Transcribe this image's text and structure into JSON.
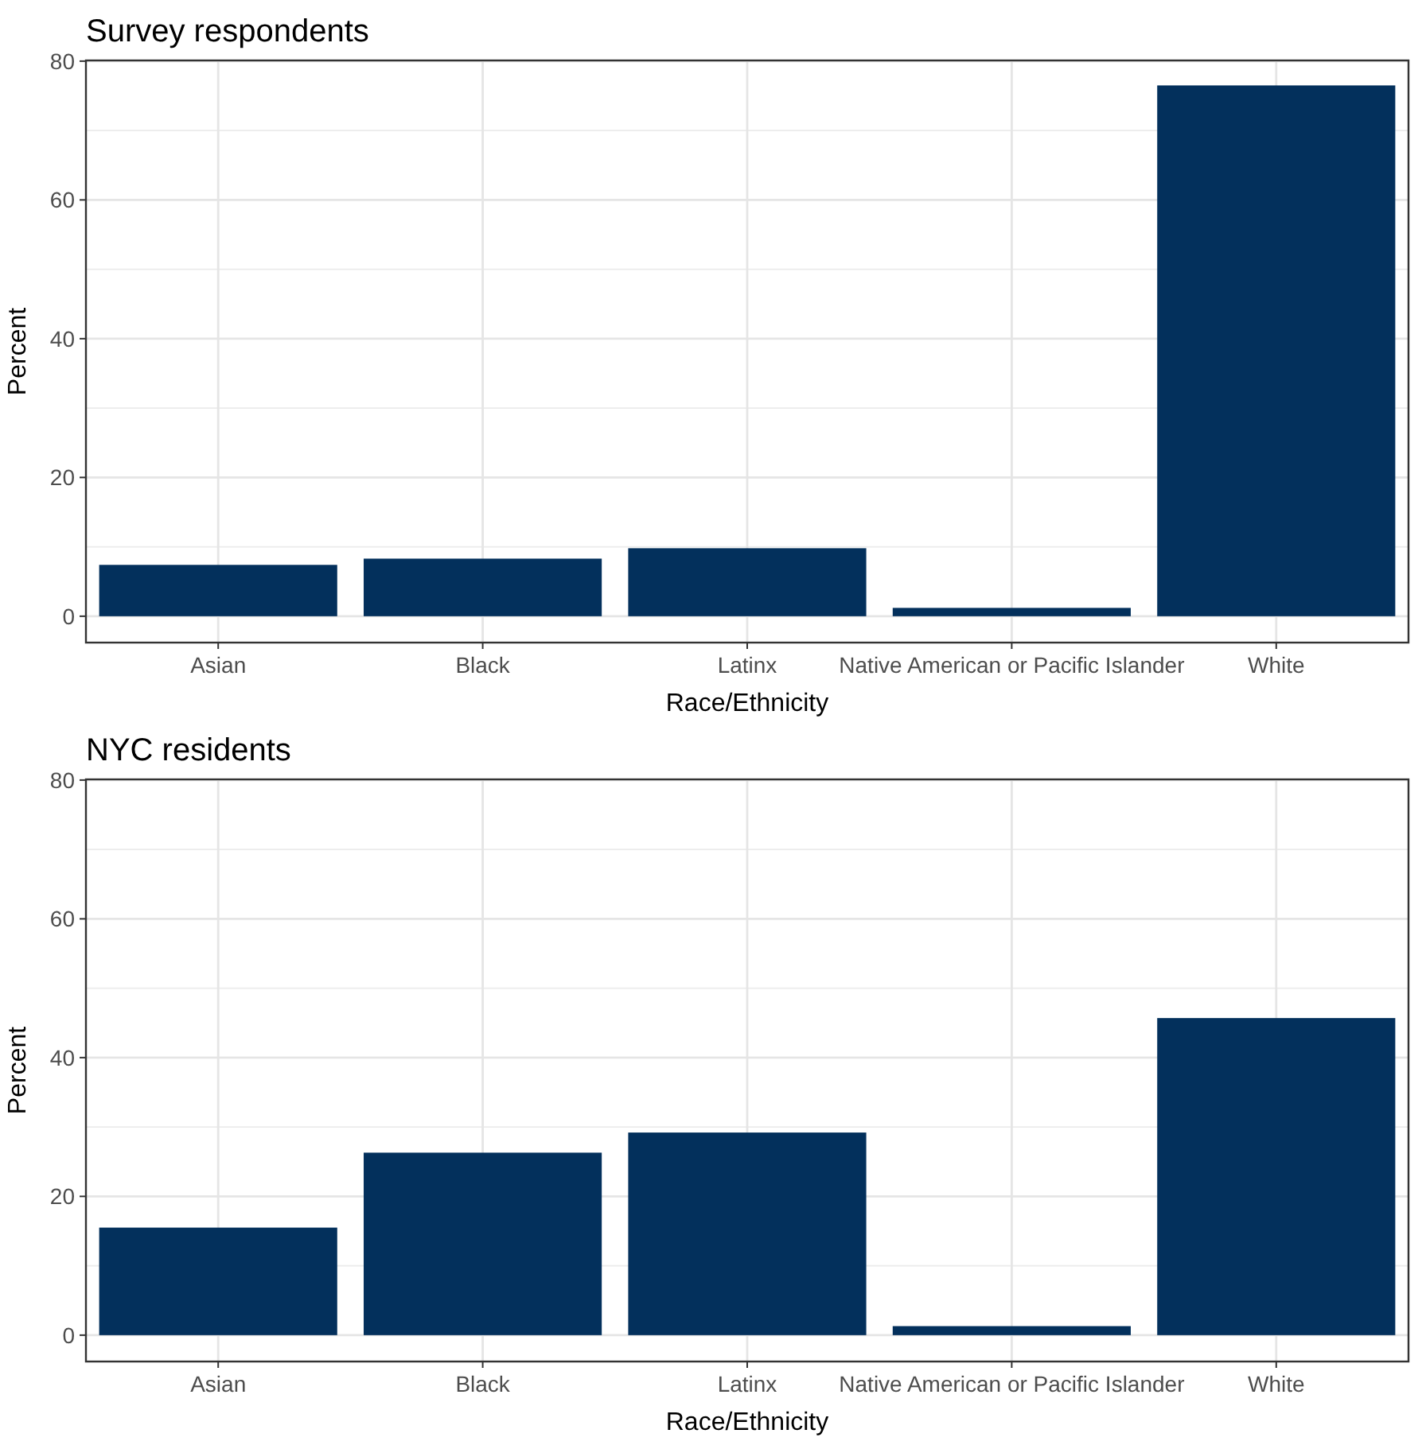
{
  "chart_data": [
    {
      "type": "bar",
      "title": "Survey respondents",
      "xlabel": "Race/Ethnicity",
      "ylabel": "Percent",
      "categories": [
        "Asian",
        "Black",
        "Latinx",
        "Native American or Pacific Islander",
        "White"
      ],
      "values": [
        7.4,
        8.3,
        9.8,
        1.2,
        76.5
      ],
      "color": "#03305c",
      "ylim": [
        -3.8,
        80.1
      ],
      "yticks": [
        0,
        20,
        40,
        60,
        80
      ],
      "grid": true
    },
    {
      "type": "bar",
      "title": "NYC residents",
      "xlabel": "Race/Ethnicity",
      "ylabel": "Percent",
      "categories": [
        "Asian",
        "Black",
        "Latinx",
        "Native American or Pacific Islander",
        "White"
      ],
      "values": [
        15.5,
        26.3,
        29.2,
        1.3,
        45.7
      ],
      "color": "#03305c",
      "ylim": [
        -3.8,
        80.1
      ],
      "yticks": [
        0,
        20,
        40,
        60,
        80
      ],
      "grid": true
    }
  ]
}
